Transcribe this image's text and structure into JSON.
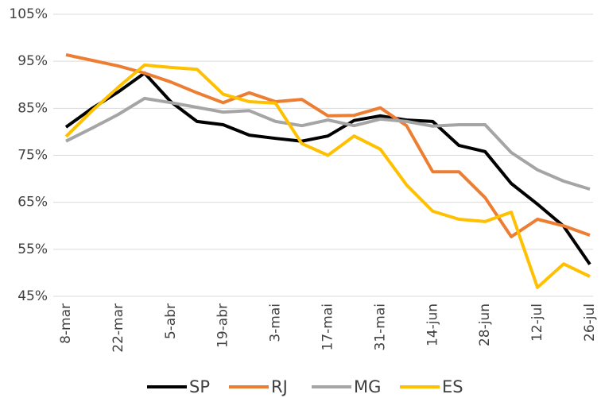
{
  "chart_data": {
    "type": "line",
    "categories": [
      "8-mar",
      null,
      "22-mar",
      null,
      "5-abr",
      null,
      "19-abr",
      null,
      "3-mai",
      null,
      "17-mai",
      null,
      "31-mai",
      null,
      "14-jun",
      null,
      "28-jun",
      null,
      "12-jul",
      null,
      "26-jul"
    ],
    "series": [
      {
        "name": "SP",
        "color": "#000000",
        "values": [
          81.0,
          85.0,
          88.5,
          92.5,
          86.4,
          82.2,
          81.5,
          79.3,
          78.6,
          78.0,
          79.1,
          82.4,
          83.4,
          82.5,
          82.2,
          77.1,
          75.8,
          69.0,
          64.6,
          59.9,
          51.8
        ]
      },
      {
        "name": "RJ",
        "color": "#ED7D31",
        "values": [
          96.4,
          95.2,
          94.0,
          92.5,
          90.6,
          88.3,
          86.2,
          88.3,
          86.4,
          86.9,
          83.4,
          83.5,
          85.1,
          81.3,
          71.5,
          71.5,
          66.0,
          57.7,
          61.4,
          60.0,
          58.0
        ]
      },
      {
        "name": "MG",
        "color": "#A5A5A5",
        "values": [
          78.0,
          80.8,
          83.7,
          87.1,
          86.2,
          85.2,
          84.2,
          84.5,
          82.2,
          81.3,
          82.5,
          81.3,
          82.7,
          82.2,
          81.2,
          81.5,
          81.5,
          75.6,
          71.9,
          69.5,
          67.8
        ]
      },
      {
        "name": "ES",
        "color": "#FFC000",
        "values": [
          79.0,
          84.5,
          89.5,
          94.2,
          93.7,
          93.3,
          88.0,
          86.4,
          86.1,
          77.5,
          75.0,
          79.1,
          76.3,
          68.7,
          63.1,
          61.4,
          60.9,
          62.9,
          46.9,
          51.9,
          49.2
        ]
      }
    ],
    "ylim": [
      45,
      105
    ],
    "yticks": [
      {
        "value": 45,
        "label": "45%"
      },
      {
        "value": 55,
        "label": "55%"
      },
      {
        "value": 65,
        "label": "65%"
      },
      {
        "value": 75,
        "label": "75%"
      },
      {
        "value": 85,
        "label": "85%"
      },
      {
        "value": 95,
        "label": "95%"
      },
      {
        "value": 105,
        "label": "105%"
      }
    ],
    "grid": true,
    "legend": "bottom"
  }
}
